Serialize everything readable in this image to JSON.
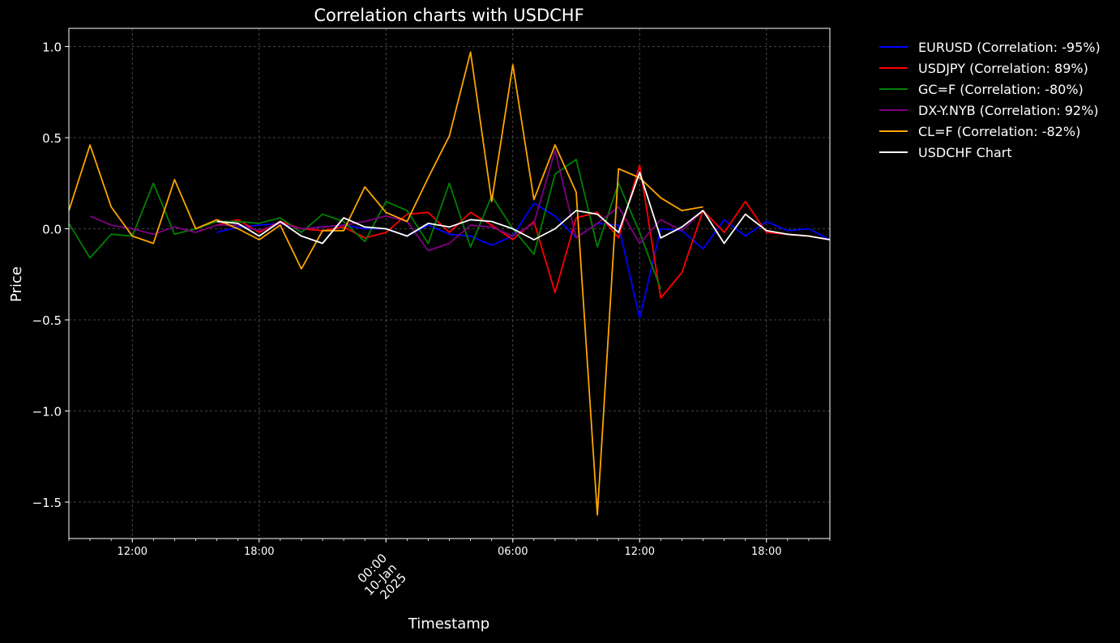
{
  "chart_data": {
    "type": "line",
    "title": "Correlation charts with USDCHF",
    "xlabel": "Timestamp",
    "ylabel": "Price",
    "xlim": [
      9.0,
      45.0
    ],
    "ylim": [
      -1.7,
      1.1
    ],
    "yticks": [
      1.0,
      0.5,
      0.0,
      -0.5,
      -1.0,
      -1.5
    ],
    "ytick_labels": [
      "1.0",
      "0.5",
      "0.0",
      "−0.5",
      "−1.0",
      "−1.5"
    ],
    "xticks": [
      {
        "x": 12,
        "label": "12:00"
      },
      {
        "x": 18,
        "label": "18:00"
      },
      {
        "x": 24,
        "label": "00:00\n10-Jan\n2025"
      },
      {
        "x": 30,
        "label": "06:00"
      },
      {
        "x": 36,
        "label": "12:00"
      },
      {
        "x": 42,
        "label": "18:00"
      }
    ],
    "grid": true,
    "background": "#000000",
    "legend_position": "outside-top-right",
    "series": [
      {
        "name": "EURUSD (Correlation: -95%)",
        "color": "#0000ff",
        "x": [
          16,
          17,
          18,
          19,
          20,
          21,
          22,
          23,
          24,
          25,
          26,
          27,
          28,
          29,
          30,
          31,
          32,
          33,
          34,
          35,
          36,
          37,
          38,
          39,
          40,
          41,
          42,
          43,
          44,
          45
        ],
        "y": [
          -0.02,
          0.01,
          0.02,
          0.03,
          0.0,
          0.01,
          0.02,
          0.0,
          0.0,
          -0.04,
          0.02,
          -0.03,
          -0.04,
          -0.09,
          -0.04,
          0.14,
          0.07,
          -0.05,
          0.03,
          0.02,
          -0.49,
          0.0,
          -0.01,
          -0.11,
          0.05,
          -0.04,
          0.04,
          -0.01,
          0.0,
          -0.06
        ]
      },
      {
        "name": "USDJPY (Correlation: 89%)",
        "color": "#ff0000",
        "x": [
          16,
          17,
          18,
          19,
          20,
          21,
          22,
          23,
          24,
          25,
          26,
          27,
          28,
          29,
          30,
          31,
          32,
          33,
          34,
          35,
          36,
          37,
          38,
          39,
          40,
          41,
          42,
          43,
          44,
          45
        ],
        "y": [
          0.02,
          0.05,
          -0.02,
          0.04,
          0.0,
          -0.01,
          0.01,
          -0.05,
          -0.02,
          0.08,
          0.09,
          -0.02,
          0.09,
          0.02,
          -0.06,
          0.04,
          -0.35,
          0.06,
          0.09,
          -0.05,
          0.35,
          -0.38,
          -0.24,
          0.1,
          -0.02,
          0.15,
          -0.02,
          -0.03,
          -0.04,
          -0.06
        ]
      },
      {
        "name": "GC=F (Correlation: -80%)",
        "color": "#008000",
        "x": [
          9,
          10,
          11,
          12,
          13,
          14,
          15,
          16,
          17,
          18,
          19,
          20,
          21,
          22,
          23,
          24,
          25,
          26,
          27,
          28,
          29,
          30,
          31,
          32,
          33,
          34,
          35,
          36,
          37
        ],
        "y": [
          0.03,
          -0.16,
          -0.03,
          -0.04,
          0.25,
          -0.03,
          0.0,
          0.04,
          0.04,
          0.03,
          0.06,
          -0.02,
          0.08,
          0.04,
          -0.07,
          0.15,
          0.1,
          -0.08,
          0.25,
          -0.1,
          0.18,
          0.0,
          -0.14,
          0.3,
          0.38,
          -0.1,
          0.25,
          -0.02,
          -0.33
        ]
      },
      {
        "name": "DX-Y.NYB (Correlation: 92%)",
        "color": "#800080",
        "x": [
          10,
          11,
          12,
          13,
          14,
          15,
          16,
          17,
          18,
          19,
          20,
          21,
          22,
          23,
          24,
          25,
          26,
          27,
          28,
          29,
          30,
          31,
          32,
          33,
          34,
          35,
          36,
          37,
          38,
          39
        ],
        "y": [
          0.07,
          0.02,
          0.0,
          -0.03,
          0.01,
          -0.02,
          0.02,
          0.02,
          -0.01,
          0.03,
          0.0,
          0.01,
          0.02,
          0.04,
          0.07,
          0.04,
          -0.12,
          -0.08,
          0.02,
          0.01,
          -0.04,
          0.03,
          0.43,
          -0.05,
          0.03,
          0.12,
          -0.08,
          0.05,
          -0.01,
          0.1
        ]
      },
      {
        "name": "CL=F (Correlation: -82%)",
        "color": "#ffa500",
        "x": [
          9,
          10,
          11,
          12,
          13,
          14,
          15,
          16,
          17,
          18,
          19,
          20,
          21,
          22,
          23,
          24,
          25,
          26,
          27,
          28,
          29,
          30,
          31,
          32,
          33,
          34,
          35,
          36,
          37,
          38,
          39
        ],
        "y": [
          0.1,
          0.46,
          0.12,
          -0.04,
          -0.08,
          0.27,
          0.0,
          0.05,
          0.0,
          -0.06,
          0.02,
          -0.22,
          -0.01,
          -0.01,
          0.23,
          0.09,
          0.04,
          0.28,
          0.51,
          0.97,
          0.15,
          0.9,
          0.16,
          0.46,
          0.2,
          -1.57,
          0.33,
          0.28,
          0.17,
          0.1,
          0.12
        ]
      },
      {
        "name": "USDCHF Chart",
        "color": "#ffffff",
        "x": [
          16,
          17,
          18,
          19,
          20,
          21,
          22,
          23,
          24,
          25,
          26,
          27,
          28,
          29,
          30,
          31,
          32,
          33,
          34,
          35,
          36,
          37,
          38,
          39,
          40,
          41,
          42,
          43,
          44,
          45
        ],
        "y": [
          0.04,
          0.03,
          -0.04,
          0.04,
          -0.04,
          -0.08,
          0.06,
          0.01,
          0.0,
          -0.04,
          0.03,
          0.01,
          0.05,
          0.04,
          0.0,
          -0.06,
          0.0,
          0.1,
          0.08,
          -0.02,
          0.31,
          -0.05,
          0.01,
          0.1,
          -0.08,
          0.08,
          -0.01,
          -0.03,
          -0.04,
          -0.06
        ]
      }
    ]
  }
}
